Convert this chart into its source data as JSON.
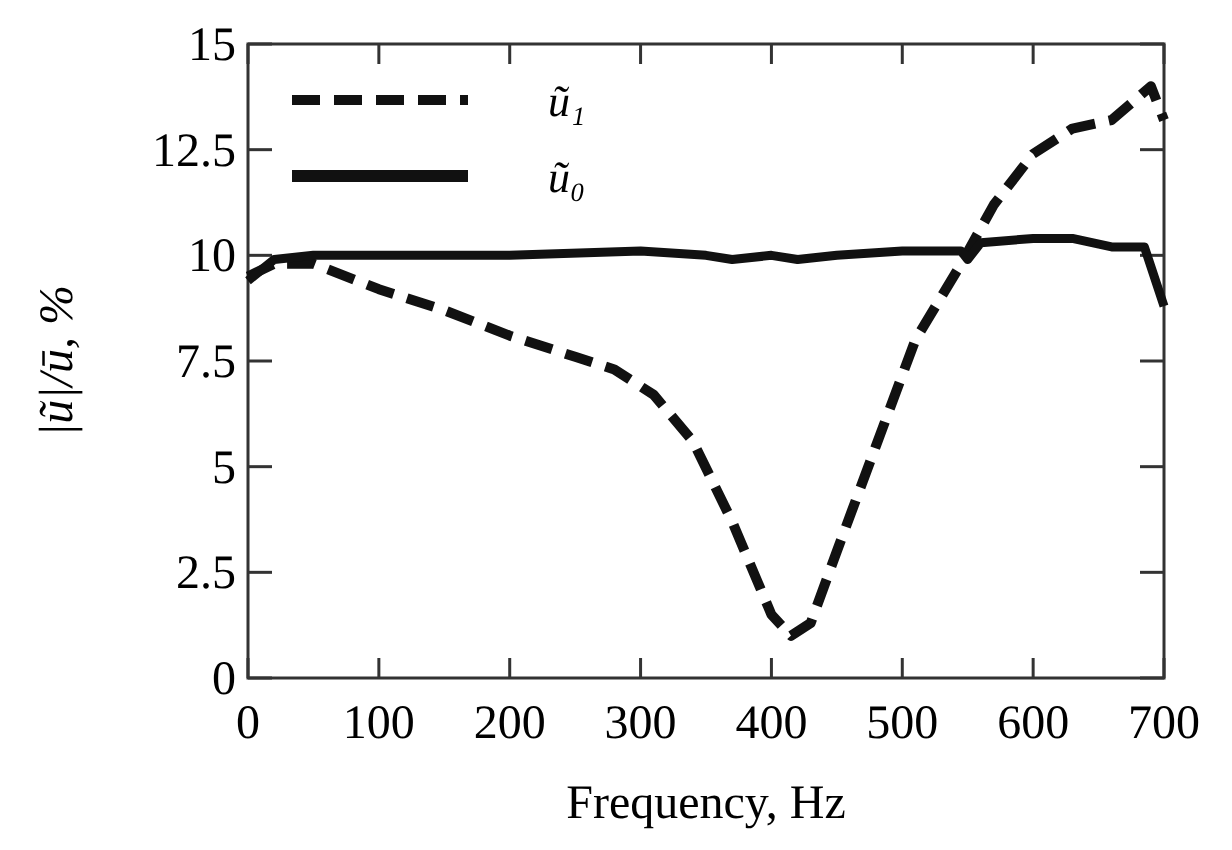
{
  "chart_data": {
    "type": "line",
    "xlabel": "Frequency, Hz",
    "ylabel": "|ũ|/ū, %",
    "xlim": [
      0,
      700
    ],
    "ylim": [
      0,
      15
    ],
    "xticks": [
      0,
      100,
      200,
      300,
      400,
      500,
      600,
      700
    ],
    "yticks": [
      0,
      2.5,
      5,
      7.5,
      10,
      12.5,
      15
    ],
    "legend": "top left",
    "grid": false,
    "series": [
      {
        "name": "ũ₁",
        "color": "#111111",
        "line_style": "dashed",
        "x": [
          0,
          20,
          50,
          100,
          150,
          200,
          250,
          280,
          310,
          340,
          370,
          400,
          415,
          430,
          450,
          480,
          510,
          545,
          570,
          600,
          630,
          660,
          690,
          700
        ],
        "values": [
          9.5,
          9.8,
          9.8,
          9.2,
          8.7,
          8.1,
          7.6,
          7.3,
          6.7,
          5.6,
          3.7,
          1.5,
          1.0,
          1.3,
          3.0,
          5.5,
          8.0,
          9.8,
          11.2,
          12.4,
          13.0,
          13.2,
          14.0,
          13.2
        ]
      },
      {
        "name": "ũ₀",
        "color": "#111111",
        "line_style": "solid",
        "x": [
          0,
          20,
          50,
          100,
          200,
          300,
          350,
          370,
          400,
          420,
          450,
          500,
          545,
          550,
          560,
          600,
          630,
          660,
          685,
          700
        ],
        "values": [
          9.4,
          9.9,
          10.0,
          10.0,
          10.0,
          10.1,
          10.0,
          9.9,
          10.0,
          9.9,
          10.0,
          10.1,
          10.1,
          9.9,
          10.3,
          10.4,
          10.4,
          10.2,
          10.2,
          8.8
        ]
      }
    ]
  }
}
